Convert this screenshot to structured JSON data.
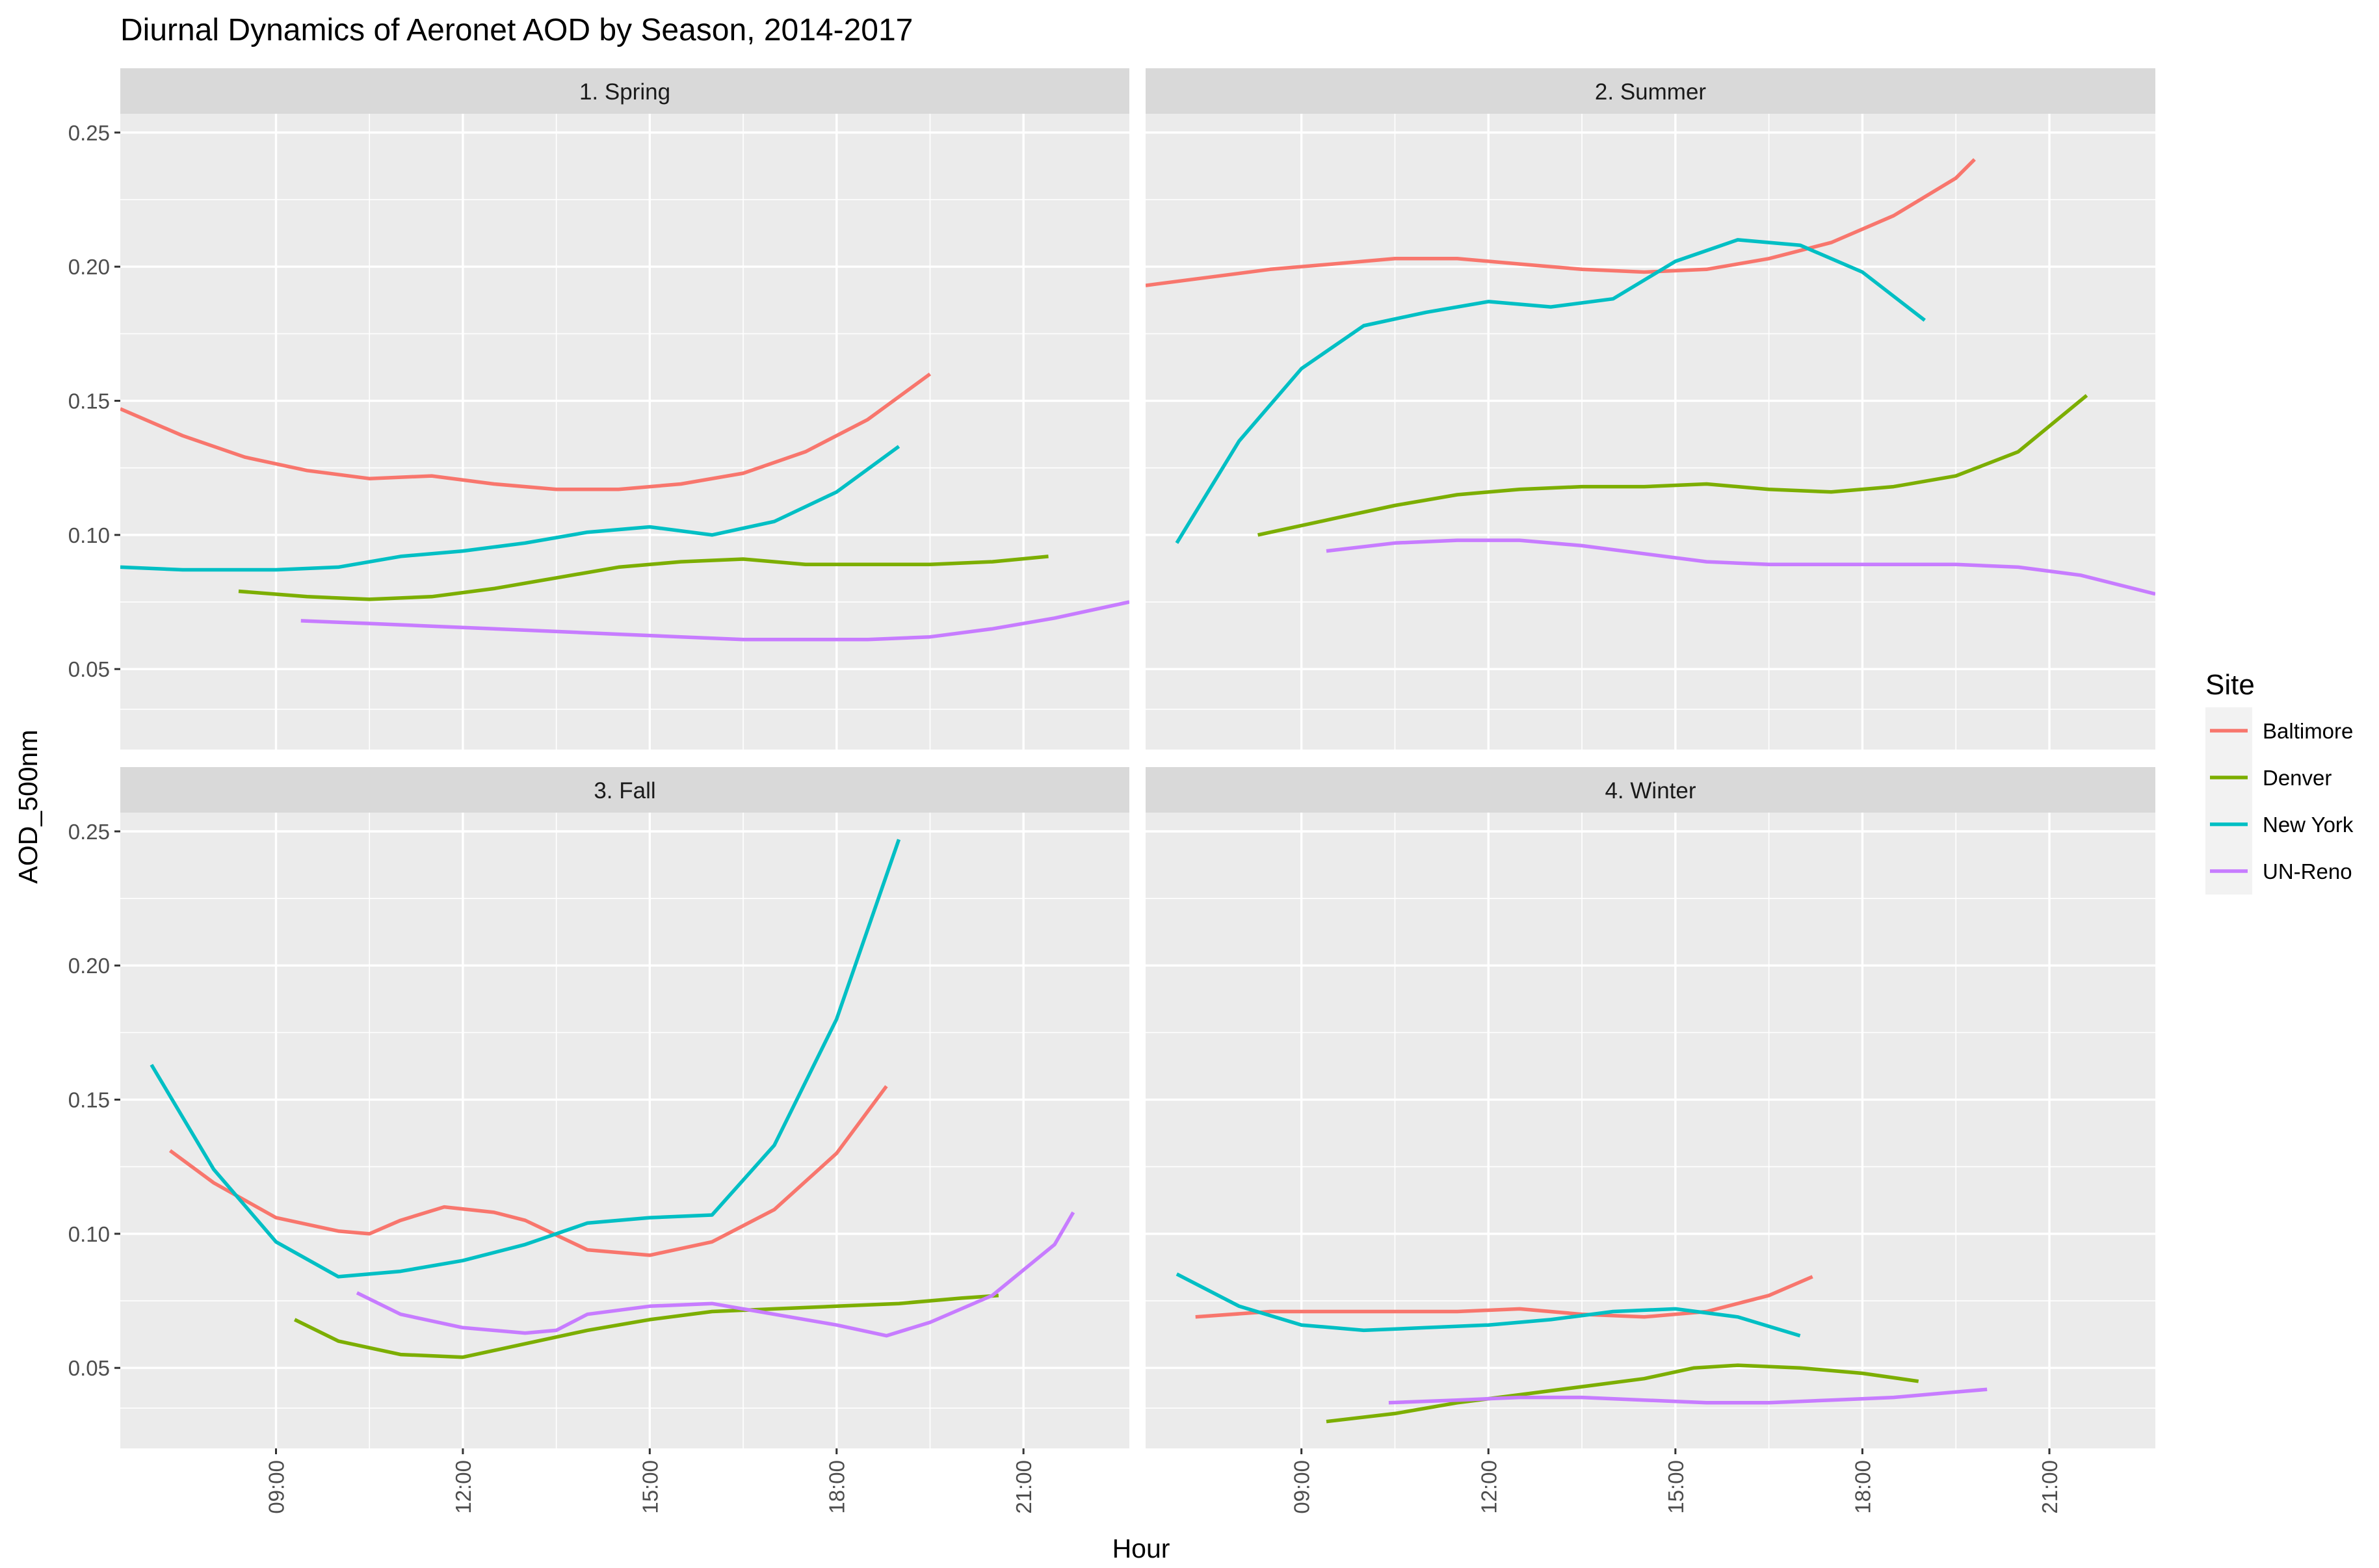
{
  "chart_data": {
    "type": "line",
    "title": "Diurnal Dynamics of Aeronet AOD by Season, 2014-2017",
    "xlabel": "Hour",
    "ylabel": "AOD_500nm",
    "x_unit": "hour of day",
    "xlim": [
      6.5,
      22.7
    ],
    "x_ticks": [
      9,
      12,
      15,
      18,
      21
    ],
    "x_tick_labels": [
      "09:00",
      "12:00",
      "15:00",
      "18:00",
      "21:00"
    ],
    "ylim": [
      0.02,
      0.257
    ],
    "y_ticks": [
      0.05,
      0.1,
      0.15,
      0.2,
      0.25
    ],
    "y_tick_labels": [
      "0.05",
      "0.10",
      "0.15",
      "0.20",
      "0.25"
    ],
    "grid": true,
    "legend": {
      "title": "Site",
      "position": "right",
      "entries": [
        "Baltimore",
        "Denver",
        "New York",
        "UN-Reno"
      ]
    },
    "colors": {
      "Baltimore": "#F8766D",
      "Denver": "#7CAE00",
      "New York": "#00BFC4",
      "UN-Reno": "#C77CFF"
    },
    "panels": [
      {
        "label": "1. Spring",
        "series": [
          {
            "name": "Baltimore",
            "x": [
              6.5,
              7.5,
              8.5,
              9.5,
              10.5,
              11.5,
              12.5,
              13.5,
              14.5,
              15.5,
              16.5,
              17.5,
              18.5,
              19.5
            ],
            "y": [
              0.147,
              0.137,
              0.129,
              0.124,
              0.121,
              0.122,
              0.119,
              0.117,
              0.117,
              0.119,
              0.123,
              0.131,
              0.143,
              0.16
            ]
          },
          {
            "name": "Denver",
            "x": [
              8.4,
              9.5,
              10.5,
              11.5,
              12.5,
              13.5,
              14.5,
              15.5,
              16.5,
              17.5,
              18.5,
              19.5,
              20.5,
              21.4
            ],
            "y": [
              0.079,
              0.077,
              0.076,
              0.077,
              0.08,
              0.084,
              0.088,
              0.09,
              0.091,
              0.089,
              0.089,
              0.089,
              0.09,
              0.092
            ]
          },
          {
            "name": "New York",
            "x": [
              6.5,
              7.5,
              8,
              9,
              10,
              11,
              12,
              13,
              14,
              15,
              16,
              17,
              18,
              19
            ],
            "y": [
              0.088,
              0.087,
              0.087,
              0.087,
              0.088,
              0.092,
              0.094,
              0.097,
              0.101,
              0.103,
              0.1,
              0.105,
              0.116,
              0.133
            ]
          },
          {
            "name": "UN-Reno",
            "x": [
              9.4,
              10.5,
              11.5,
              12.5,
              13.5,
              14.5,
              15.5,
              16.5,
              17.5,
              18.5,
              19.5,
              20.5,
              21.5,
              22.7
            ],
            "y": [
              0.068,
              0.067,
              0.066,
              0.065,
              0.064,
              0.063,
              0.062,
              0.061,
              0.061,
              0.061,
              0.062,
              0.065,
              0.069,
              0.075
            ]
          }
        ]
      },
      {
        "label": "2. Summer",
        "series": [
          {
            "name": "Baltimore",
            "x": [
              6.5,
              7.5,
              8.5,
              9.5,
              10.5,
              11.5,
              12.5,
              13.5,
              14.5,
              15.5,
              16.5,
              17.5,
              18.5,
              19.5,
              19.8
            ],
            "y": [
              0.193,
              0.196,
              0.199,
              0.201,
              0.203,
              0.203,
              0.201,
              0.199,
              0.198,
              0.199,
              0.203,
              0.209,
              0.219,
              0.233,
              0.24
            ]
          },
          {
            "name": "Denver",
            "x": [
              8.3,
              9.5,
              10.5,
              11.5,
              12.5,
              13.5,
              14.5,
              15.5,
              16.5,
              17.5,
              18.5,
              19.5,
              20.5,
              21.6
            ],
            "y": [
              0.1,
              0.106,
              0.111,
              0.115,
              0.117,
              0.118,
              0.118,
              0.119,
              0.117,
              0.116,
              0.118,
              0.122,
              0.131,
              0.152
            ]
          },
          {
            "name": "New York",
            "x": [
              7,
              8,
              9,
              10,
              11,
              12,
              13,
              14,
              15,
              16,
              17,
              18,
              19
            ],
            "y": [
              0.097,
              0.135,
              0.162,
              0.178,
              0.183,
              0.187,
              0.185,
              0.188,
              0.202,
              0.21,
              0.208,
              0.198,
              0.18
            ]
          },
          {
            "name": "UN-Reno",
            "x": [
              9.4,
              10.5,
              11.5,
              12.5,
              13.5,
              14.5,
              15.5,
              16.5,
              17.5,
              18.5,
              19.5,
              20.5,
              21.5,
              22.7
            ],
            "y": [
              0.094,
              0.097,
              0.098,
              0.098,
              0.096,
              0.093,
              0.09,
              0.089,
              0.089,
              0.089,
              0.089,
              0.088,
              0.085,
              0.078
            ]
          }
        ]
      },
      {
        "label": "3. Fall",
        "series": [
          {
            "name": "Baltimore",
            "x": [
              7.3,
              8,
              9,
              10,
              10.5,
              11,
              11.7,
              12.5,
              13,
              14,
              15,
              16,
              17,
              18,
              18.8
            ],
            "y": [
              0.131,
              0.119,
              0.106,
              0.101,
              0.1,
              0.105,
              0.11,
              0.108,
              0.105,
              0.094,
              0.092,
              0.097,
              0.109,
              0.13,
              0.155
            ]
          },
          {
            "name": "Denver",
            "x": [
              9.3,
              10,
              11,
              12,
              13,
              14,
              15,
              16,
              17,
              18,
              19,
              20,
              20.6
            ],
            "y": [
              0.068,
              0.06,
              0.055,
              0.054,
              0.059,
              0.064,
              0.068,
              0.071,
              0.072,
              0.073,
              0.074,
              0.076,
              0.077
            ]
          },
          {
            "name": "New York",
            "x": [
              7,
              8,
              9,
              10,
              11,
              12,
              13,
              14,
              15,
              16,
              17,
              18,
              19
            ],
            "y": [
              0.163,
              0.124,
              0.097,
              0.084,
              0.086,
              0.09,
              0.096,
              0.104,
              0.106,
              0.107,
              0.133,
              0.18,
              0.247
            ]
          },
          {
            "name": "UN-Reno",
            "x": [
              10.3,
              11,
              12,
              13,
              13.5,
              14,
              15,
              16,
              17,
              18,
              18.8,
              19.5,
              20.5,
              21.5,
              21.8
            ],
            "y": [
              0.078,
              0.07,
              0.065,
              0.063,
              0.064,
              0.07,
              0.073,
              0.074,
              0.07,
              0.066,
              0.062,
              0.067,
              0.077,
              0.096,
              0.108
            ]
          }
        ]
      },
      {
        "label": "4. Winter",
        "series": [
          {
            "name": "Baltimore",
            "x": [
              7.3,
              8.5,
              9.5,
              10.5,
              11.5,
              12.5,
              13.5,
              14.5,
              15.5,
              16.5,
              17.2
            ],
            "y": [
              0.069,
              0.071,
              0.071,
              0.071,
              0.071,
              0.072,
              0.07,
              0.069,
              0.071,
              0.077,
              0.084
            ]
          },
          {
            "name": "Denver",
            "x": [
              9.4,
              10.5,
              11.5,
              12.5,
              13.5,
              14.5,
              15.3,
              16,
              17,
              18,
              18.9
            ],
            "y": [
              0.03,
              0.033,
              0.037,
              0.04,
              0.043,
              0.046,
              0.05,
              0.051,
              0.05,
              0.048,
              0.045
            ]
          },
          {
            "name": "New York",
            "x": [
              7,
              8,
              9,
              10,
              11,
              12,
              13,
              14,
              15,
              16,
              17
            ],
            "y": [
              0.085,
              0.073,
              0.066,
              0.064,
              0.065,
              0.066,
              0.068,
              0.071,
              0.072,
              0.069,
              0.062
            ]
          },
          {
            "name": "UN-Reno",
            "x": [
              10.4,
              11.5,
              12.5,
              13.5,
              14.5,
              15.5,
              16.5,
              17.5,
              18.5,
              19.5,
              20
            ],
            "y": [
              0.037,
              0.038,
              0.039,
              0.039,
              0.038,
              0.037,
              0.037,
              0.038,
              0.039,
              0.041,
              0.042
            ]
          }
        ]
      }
    ]
  }
}
